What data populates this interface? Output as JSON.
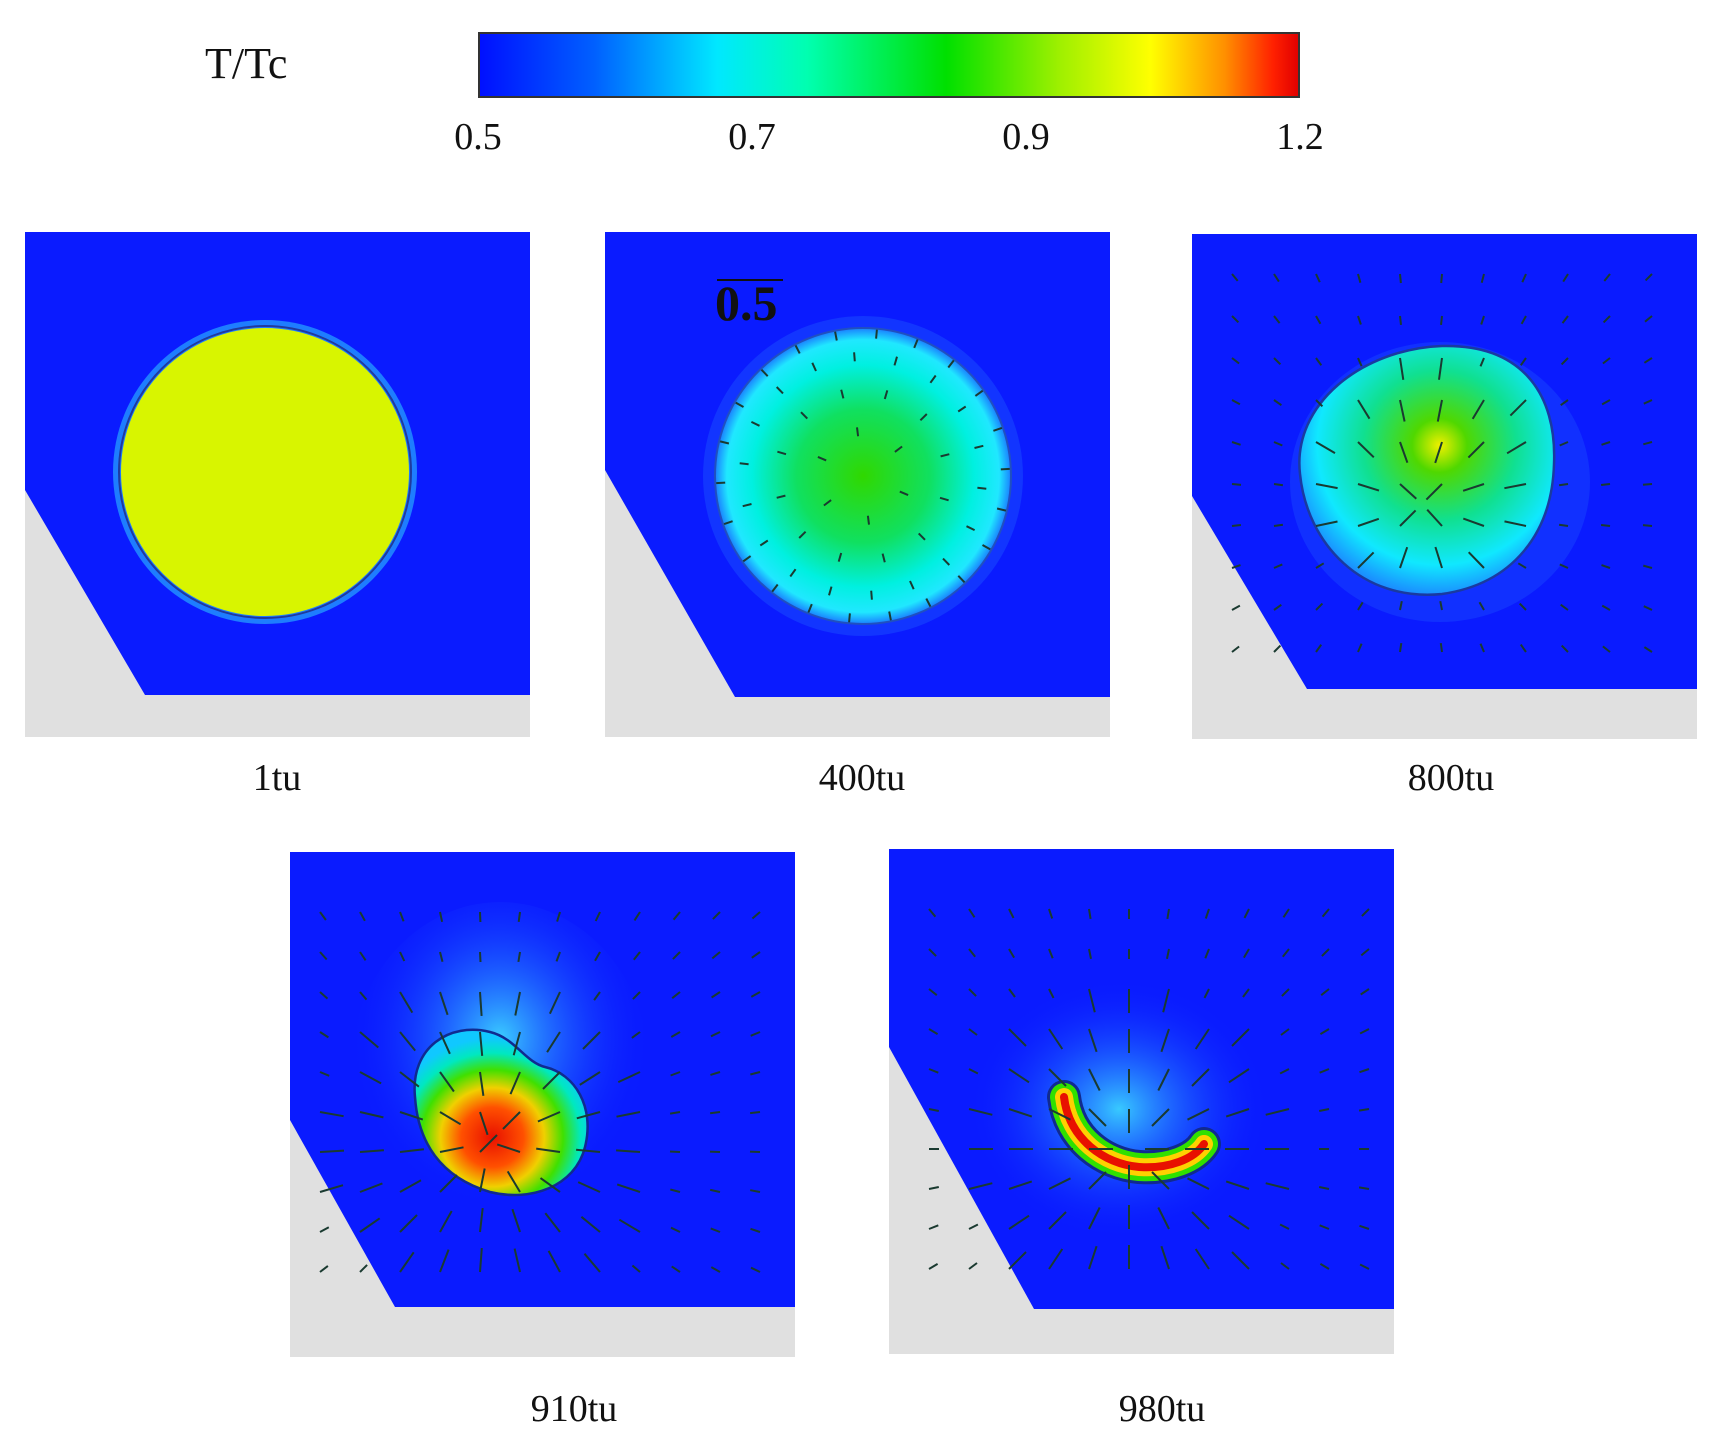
{
  "colorbar": {
    "title": "T/Tc",
    "ticks": [
      "0.5",
      "0.7",
      "0.9",
      "1.2"
    ]
  },
  "panels": [
    {
      "label": "1tu"
    },
    {
      "label": "400tu",
      "annotation": "0.5"
    },
    {
      "label": "800tu"
    },
    {
      "label": "910tu"
    },
    {
      "label": "980tu"
    }
  ],
  "colors": {
    "field_blue": "#0a1bff",
    "wall_gray": "#e0e0e0",
    "droplet_yellow": "#d8f500",
    "hot_red": "#e81000"
  }
}
